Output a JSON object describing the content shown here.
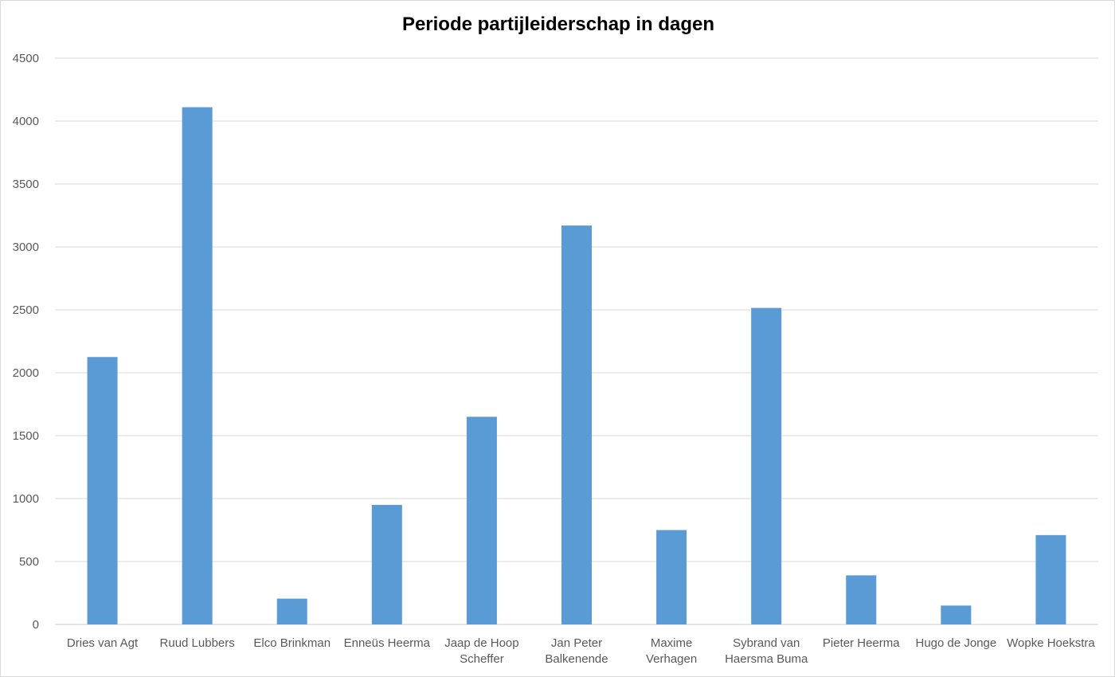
{
  "chart_data": {
    "type": "bar",
    "title": "Periode partijleiderschap in dagen",
    "xlabel": "",
    "ylabel": "",
    "ylim": [
      0,
      4500
    ],
    "yticks": [
      "0",
      "500",
      "1000",
      "1500",
      "2000",
      "2500",
      "3000",
      "3500",
      "4000",
      "4500"
    ],
    "grid": true,
    "legend": "none",
    "bar_color": "#5B9BD5",
    "categories": [
      [
        "Dries van Agt"
      ],
      [
        "Ruud Lubbers"
      ],
      [
        "Elco Brinkman"
      ],
      [
        "Enneüs Heerma"
      ],
      [
        "Jaap de Hoop",
        "Scheffer"
      ],
      [
        "Jan Peter",
        "Balkenende"
      ],
      [
        "Maxime",
        "Verhagen"
      ],
      [
        "Sybrand van",
        "Haersma Buma"
      ],
      [
        "Pieter Heerma"
      ],
      [
        "Hugo de Jonge"
      ],
      [
        "Wopke Hoekstra"
      ]
    ],
    "values": [
      2125,
      4110,
      205,
      950,
      1650,
      3170,
      750,
      2515,
      390,
      150,
      710
    ]
  }
}
